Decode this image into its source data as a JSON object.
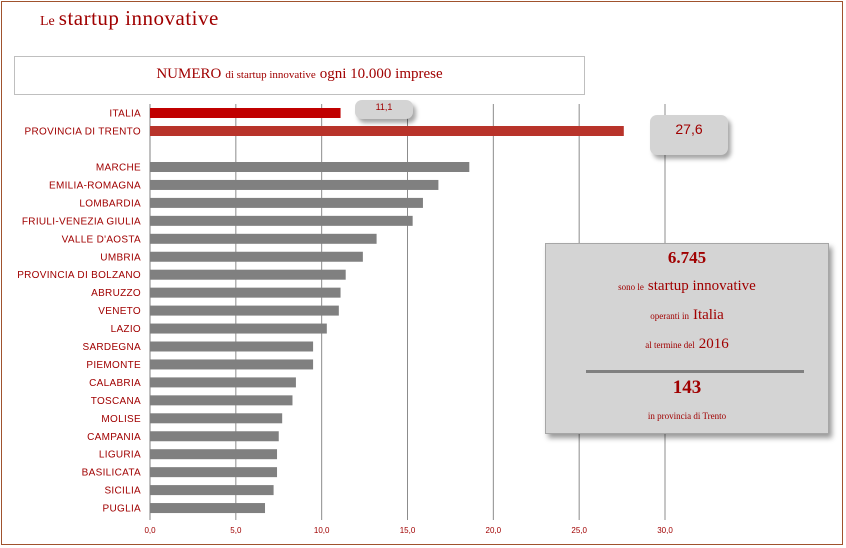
{
  "header": {
    "title_prefix": "Le",
    "title_main": "startup innovative"
  },
  "chart_title": {
    "part1": "NUMERO",
    "part2": "di startup innovative",
    "part3": "ogni 10.000 imprese"
  },
  "chart_data": {
    "type": "bar",
    "orientation": "horizontal",
    "categories": [
      "ITALIA",
      "PROVINCIA DI TRENTO",
      "MARCHE",
      "EMILIA-ROMAGNA",
      "LOMBARDIA",
      "FRIULI-VENEZIA GIULIA",
      "VALLE D'AOSTA",
      "UMBRIA",
      "PROVINCIA DI BOLZANO",
      "ABRUZZO",
      "VENETO",
      "LAZIO",
      "SARDEGNA",
      "PIEMONTE",
      "CALABRIA",
      "TOSCANA",
      "MOLISE",
      "CAMPANIA",
      "LIGURIA",
      "BASILICATA",
      "SICILIA",
      "PUGLIA"
    ],
    "values": [
      11.1,
      27.6,
      18.6,
      16.8,
      15.9,
      15.3,
      13.2,
      12.4,
      11.4,
      11.1,
      11.0,
      10.3,
      9.5,
      9.5,
      8.5,
      8.3,
      7.7,
      7.5,
      7.4,
      7.4,
      7.2,
      6.7
    ],
    "highlight_colors": {
      "ITALIA": "#c00000",
      "PROVINCIA DI TRENTO": "#b8332a"
    },
    "bar_color": "#808080",
    "xlim": [
      0,
      30
    ],
    "xticks": [
      "0,0",
      "5,0",
      "10,0",
      "15,0",
      "20,0",
      "25,0",
      "30,0"
    ],
    "grid": "vertical",
    "annotations": [
      {
        "category": "ITALIA",
        "text": "11,1"
      },
      {
        "category": "PROVINCIA DI TRENTO",
        "text": "27,6"
      }
    ]
  },
  "info_box": {
    "number_italy": "6.745",
    "line2_small": "sono le",
    "line2_big": "startup innovative",
    "line3_small": "operanti in",
    "line3_big": "Italia",
    "line4_small": "al termine del",
    "line4_big": "2016",
    "number_trento": "143",
    "line5": "in provincia di Trento"
  }
}
